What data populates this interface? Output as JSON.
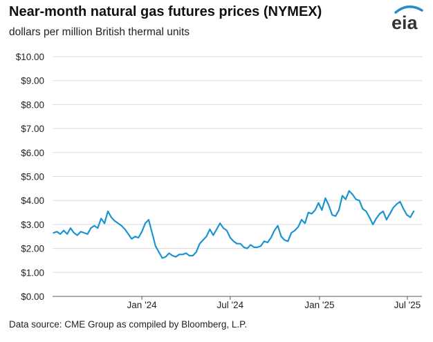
{
  "header": {
    "title": "Near-month natural gas futures prices (NYMEX)",
    "subtitle": "dollars per million British thermal units",
    "logo_text": "eia"
  },
  "footer": {
    "source": "Data source: CME Group as compiled by Bloomberg, L.P."
  },
  "colors": {
    "series": "#1a93d0",
    "grid": "#d9d9d9",
    "axis": "#555555",
    "logo_text": "#333333",
    "logo_arc": "#2a8bc9"
  },
  "chart_data": {
    "type": "line",
    "title": "Near-month natural gas futures prices (NYMEX)",
    "ylabel": "dollars per million British thermal units",
    "ylim": [
      0,
      10
    ],
    "yticks": [
      0,
      1,
      2,
      3,
      4,
      5,
      6,
      7,
      8,
      9,
      10
    ],
    "ytick_labels": [
      "$0.00",
      "$1.00",
      "$2.00",
      "$3.00",
      "$4.00",
      "$5.00",
      "$6.00",
      "$7.00",
      "$8.00",
      "$9.00",
      "$10.00"
    ],
    "xlim": [
      "2023-07-01",
      "2025-07-31"
    ],
    "xticks": [
      "2024-01-01",
      "2024-07-01",
      "2025-01-01",
      "2025-07-01"
    ],
    "xtick_labels": [
      "Jan '24",
      "Jul '24",
      "Jan '25",
      "Jul '25"
    ],
    "grid": true,
    "series": [
      {
        "x": [
          "2023-07-03",
          "2023-07-10",
          "2023-07-17",
          "2023-07-24",
          "2023-07-31",
          "2023-08-07",
          "2023-08-14",
          "2023-08-21",
          "2023-08-28",
          "2023-09-04",
          "2023-09-11",
          "2023-09-18",
          "2023-09-25",
          "2023-10-02",
          "2023-10-09",
          "2023-10-16",
          "2023-10-23",
          "2023-10-30",
          "2023-11-06",
          "2023-11-13",
          "2023-11-20",
          "2023-11-27",
          "2023-12-04",
          "2023-12-11",
          "2023-12-18",
          "2023-12-25",
          "2024-01-01",
          "2024-01-08",
          "2024-01-15",
          "2024-01-22",
          "2024-01-29",
          "2024-02-05",
          "2024-02-12",
          "2024-02-19",
          "2024-02-26",
          "2024-03-04",
          "2024-03-11",
          "2024-03-18",
          "2024-03-25",
          "2024-04-01",
          "2024-04-08",
          "2024-04-15",
          "2024-04-22",
          "2024-04-29",
          "2024-05-06",
          "2024-05-13",
          "2024-05-20",
          "2024-05-27",
          "2024-06-03",
          "2024-06-10",
          "2024-06-17",
          "2024-06-24",
          "2024-07-01",
          "2024-07-08",
          "2024-07-15",
          "2024-07-22",
          "2024-07-29",
          "2024-08-05",
          "2024-08-12",
          "2024-08-19",
          "2024-08-26",
          "2024-09-02",
          "2024-09-09",
          "2024-09-16",
          "2024-09-23",
          "2024-09-30",
          "2024-10-07",
          "2024-10-14",
          "2024-10-21",
          "2024-10-28",
          "2024-11-04",
          "2024-11-11",
          "2024-11-18",
          "2024-11-25",
          "2024-12-02",
          "2024-12-09",
          "2024-12-16",
          "2024-12-23",
          "2024-12-30",
          "2025-01-06",
          "2025-01-13",
          "2025-01-20",
          "2025-01-27",
          "2025-02-03",
          "2025-02-10",
          "2025-02-17",
          "2025-02-24",
          "2025-03-03",
          "2025-03-10",
          "2025-03-17",
          "2025-03-24",
          "2025-03-31",
          "2025-04-07",
          "2025-04-14",
          "2025-04-21",
          "2025-04-28",
          "2025-05-05",
          "2025-05-12",
          "2025-05-19",
          "2025-05-26",
          "2025-06-02",
          "2025-06-09",
          "2025-06-16",
          "2025-06-23",
          "2025-06-30",
          "2025-07-07",
          "2025-07-14"
        ],
        "values": [
          2.65,
          2.7,
          2.6,
          2.75,
          2.6,
          2.85,
          2.65,
          2.55,
          2.7,
          2.65,
          2.6,
          2.85,
          2.95,
          2.85,
          3.25,
          3.05,
          3.55,
          3.3,
          3.15,
          3.05,
          2.95,
          2.8,
          2.6,
          2.4,
          2.5,
          2.45,
          2.7,
          3.05,
          3.2,
          2.65,
          2.1,
          1.85,
          1.6,
          1.65,
          1.8,
          1.7,
          1.65,
          1.75,
          1.75,
          1.8,
          1.7,
          1.7,
          1.85,
          2.2,
          2.35,
          2.5,
          2.8,
          2.55,
          2.8,
          3.05,
          2.85,
          2.75,
          2.45,
          2.3,
          2.2,
          2.2,
          2.05,
          2.0,
          2.15,
          2.05,
          2.05,
          2.1,
          2.3,
          2.25,
          2.45,
          2.75,
          2.95,
          2.5,
          2.35,
          2.3,
          2.65,
          2.75,
          2.9,
          3.2,
          3.05,
          3.5,
          3.45,
          3.6,
          3.9,
          3.6,
          4.1,
          3.8,
          3.4,
          3.35,
          3.6,
          4.2,
          4.05,
          4.4,
          4.25,
          4.05,
          4.0,
          3.65,
          3.55,
          3.3,
          3.0,
          3.25,
          3.45,
          3.55,
          3.2,
          3.45,
          3.7,
          3.85,
          3.95,
          3.65,
          3.4,
          3.3,
          3.55
        ]
      }
    ]
  }
}
